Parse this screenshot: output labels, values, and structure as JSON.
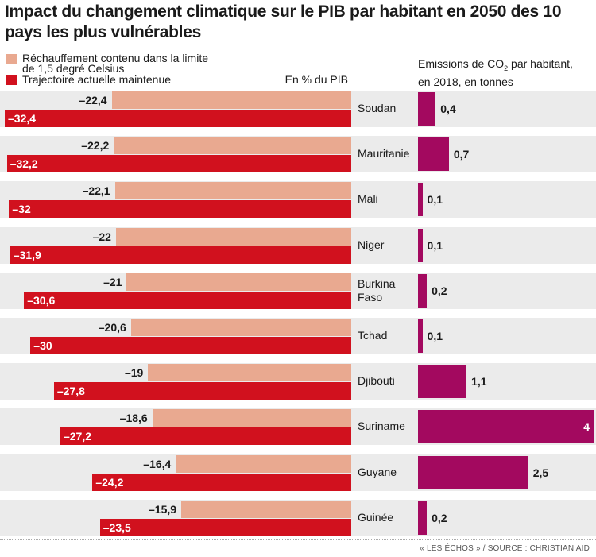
{
  "title": "Impact du changement climatique sur le PIB par habitant en 2050 des 10 pays les plus vulnérables",
  "legend": {
    "pale_line1": "Réchauffement contenu dans la limite",
    "pale_line2": "de 1,5 degré Celsius",
    "red": "Trajectoire actuelle maintenue"
  },
  "unit_left": "En % du PIB",
  "co2_header": {
    "line1_before": "Emissions de CO",
    "line1_sub": "2",
    "line1_after": " par habitant,",
    "line2": "en 2018, en tonnes"
  },
  "source": "« LES ÉCHOS » / SOURCE : CHRISTIAN AID",
  "colors": {
    "pale": "#e9a990",
    "red": "#d1111e",
    "co2": "#a3095f",
    "row_bg": "#ebebeb"
  },
  "chart_data": [
    {
      "type": "bar",
      "orientation": "horizontal",
      "ylabel": "En % du PIB",
      "categories": [
        "Soudan",
        "Mauritanie",
        "Mali",
        "Niger",
        "Burkina Faso",
        "Tchad",
        "Djibouti",
        "Suriname",
        "Guyane",
        "Guinée"
      ],
      "series": [
        {
          "name": "Réchauffement contenu dans la limite de 1,5 degré Celsius",
          "values": [
            -22.4,
            -22.2,
            -22.1,
            -22,
            -21,
            -20.6,
            -19,
            -18.6,
            -16.4,
            -15.9
          ],
          "labels": [
            "–22,4",
            "–22,2",
            "–22,1",
            "–22",
            "–21",
            "–20,6",
            "–19",
            "–18,6",
            "–16,4",
            "–15,9"
          ]
        },
        {
          "name": "Trajectoire actuelle maintenue",
          "values": [
            -32.4,
            -32.2,
            -32,
            -31.9,
            -30.6,
            -30,
            -27.8,
            -27.2,
            -24.2,
            -23.5
          ],
          "labels": [
            "–32,4",
            "–32,2",
            "–32",
            "–31,9",
            "–30,6",
            "–30",
            "–27,8",
            "–27,2",
            "–24,2",
            "–23,5"
          ]
        }
      ]
    },
    {
      "type": "bar",
      "orientation": "horizontal",
      "title": "Emissions de CO2 par habitant, en 2018, en tonnes",
      "categories": [
        "Soudan",
        "Mauritanie",
        "Mali",
        "Niger",
        "Burkina Faso",
        "Tchad",
        "Djibouti",
        "Suriname",
        "Guyane",
        "Guinée"
      ],
      "values": [
        0.4,
        0.7,
        0.1,
        0.1,
        0.2,
        0.1,
        1.1,
        4,
        2.5,
        0.2
      ],
      "labels": [
        "0,4",
        "0,7",
        "0,1",
        "0,1",
        "0,2",
        "0,1",
        "1,1",
        "4",
        "2,5",
        "0,2"
      ]
    }
  ]
}
